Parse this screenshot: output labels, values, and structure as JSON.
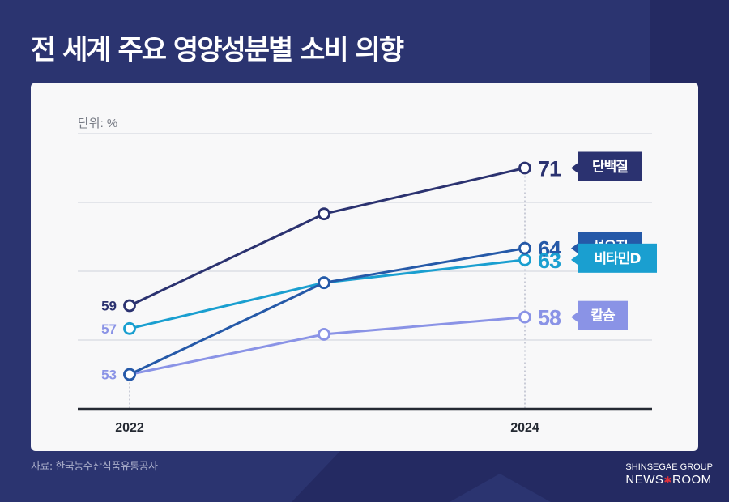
{
  "header": {
    "title": "전 세계 주요 영양성분별 소비 의향"
  },
  "chart": {
    "unit_label": "단위: %"
  },
  "footer": {
    "source": "자료: 한국농수산식품유통공사",
    "brand_line1": "SHINSEGAE GROUP",
    "brand_news": "NEWS",
    "brand_star": "✱",
    "brand_room": "ROOM"
  },
  "colors": {
    "background": "#2b3470",
    "background_dark": "#242a62",
    "card": "#f8f8f9",
    "grid": "#e3e5ea",
    "axis": "#252a33",
    "brand_star": "#e2313a"
  },
  "chart_data": {
    "type": "line",
    "title": "전 세계 주요 영양성분별 소비 의향",
    "unit": "%",
    "x": [
      "2022",
      "2023",
      "2024"
    ],
    "x_tick_labels": [
      "2022",
      "",
      "2024"
    ],
    "ylim": [
      50,
      74
    ],
    "gridlines": [
      56,
      62,
      68,
      74
    ],
    "grid": true,
    "legend": "right, inline tags at line ends",
    "series": [
      {
        "name": "단백질",
        "color": "#2b3270",
        "label_color": "#2b3270",
        "values": [
          59,
          67,
          71
        ],
        "start_label": "59",
        "end_label": "71"
      },
      {
        "name": "섬유질",
        "color": "#2559a8",
        "label_color": "#2559a8",
        "values": [
          53,
          61,
          64
        ],
        "start_label": "",
        "end_label": "64"
      },
      {
        "name": "비타민D",
        "color": "#1a9fd0",
        "label_color": "#1a9fd0",
        "values": [
          57,
          61,
          63
        ],
        "start_label": "57",
        "start_label_color": "#8a93e6",
        "end_label": "63"
      },
      {
        "name": "칼슘",
        "color": "#8a93e6",
        "label_color": "#8a93e6",
        "values": [
          53,
          56.5,
          58
        ],
        "start_label": "53",
        "end_label": "58"
      }
    ]
  }
}
